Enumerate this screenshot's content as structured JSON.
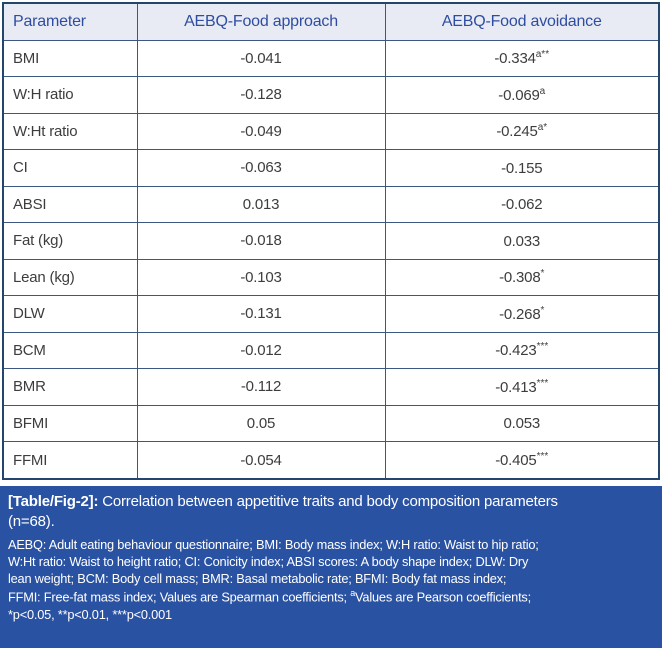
{
  "table": {
    "headers": [
      "Parameter",
      "AEBQ-Food approach",
      "AEBQ-Food avoidance"
    ],
    "rows": [
      {
        "param": "BMI",
        "approach": "-0.041",
        "avoidance": "-0.334",
        "avoidance_sup": "a**"
      },
      {
        "param": "W:H ratio",
        "approach": "-0.128",
        "avoidance": "-0.069",
        "avoidance_sup": "a"
      },
      {
        "param": "W:Ht ratio",
        "approach": "-0.049",
        "avoidance": "-0.245",
        "avoidance_sup": "a*"
      },
      {
        "param": "CI",
        "approach": "-0.063",
        "avoidance": "-0.155",
        "avoidance_sup": ""
      },
      {
        "param": "ABSI",
        "approach": "0.013",
        "avoidance": "-0.062",
        "avoidance_sup": ""
      },
      {
        "param": "Fat (kg)",
        "approach": "-0.018",
        "avoidance": "0.033",
        "avoidance_sup": ""
      },
      {
        "param": "Lean (kg)",
        "approach": "-0.103",
        "avoidance": "-0.308",
        "avoidance_sup": "*"
      },
      {
        "param": "DLW",
        "approach": "-0.131",
        "avoidance": "-0.268",
        "avoidance_sup": "*"
      },
      {
        "param": "BCM",
        "approach": "-0.012",
        "avoidance": "-0.423",
        "avoidance_sup": "***"
      },
      {
        "param": "BMR",
        "approach": "-0.112",
        "avoidance": "-0.413",
        "avoidance_sup": "***"
      },
      {
        "param": "BFMI",
        "approach": "0.05",
        "avoidance": "0.053",
        "avoidance_sup": ""
      },
      {
        "param": "FFMI",
        "approach": "-0.054",
        "avoidance": "-0.405",
        "avoidance_sup": "***"
      }
    ]
  },
  "caption": {
    "label": "[Table/Fig-2]:",
    "title_rest": " Correlation between appetitive traits and body composition parameters (n=68).",
    "note_line1": "AEBQ: Adult eating behaviour questionnaire; BMI: Body mass index; W:H ratio: Waist to hip ratio;",
    "note_line2": "W:Ht ratio: Waist to height ratio; CI: Conicity index; ABSI scores: A body shape index; DLW: Dry",
    "note_line3": "lean weight; BCM: Body cell mass; BMR: Basal metabolic rate; BFMI: Body fat mass index;",
    "note_line4_pre": "FFMI: Free-fat mass index; Values are Spearman coefficients; ",
    "note_line4_sup": "a",
    "note_line4_post": "Values are Pearson coefficients;",
    "note_line5": "*p<0.05, **p<0.01, ***p<0.001"
  },
  "colors": {
    "header_bg": "#e9ebf4",
    "header_text": "#2e4da0",
    "inner_border": "#3c5880",
    "outer_border": "#24466d",
    "caption_bg": "#2a52a3",
    "caption_text": "#ffffff",
    "cell_text": "#3d3d3d"
  }
}
